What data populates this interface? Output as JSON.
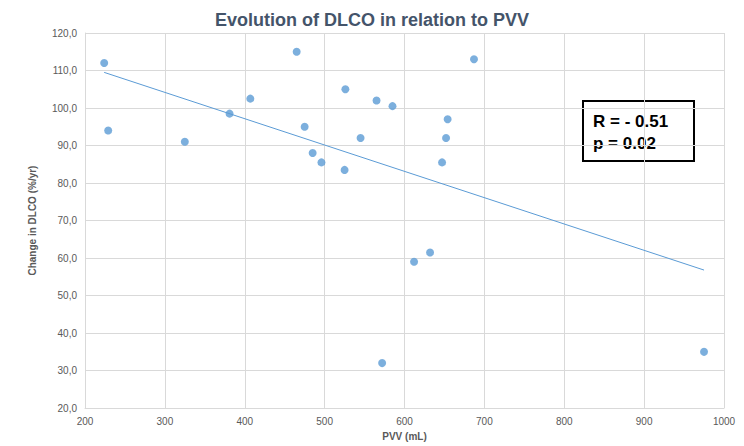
{
  "chart_data": {
    "type": "scatter",
    "title": "Evolution of DLCO in relation to PVV",
    "x_label": "PVV (mL)",
    "y_label": "Change in DLCO (%/yr)",
    "annotations": [
      "R = - 0.51",
      "p = 0.02"
    ],
    "xlim": [
      200,
      1000
    ],
    "xticks": [
      200,
      300,
      400,
      500,
      600,
      700,
      800,
      900,
      1000
    ],
    "ylim": [
      20,
      120
    ],
    "yticks": [
      {
        "value": 20,
        "label": "20,0"
      },
      {
        "value": 30,
        "label": "30,0"
      },
      {
        "value": 40,
        "label": "40,0"
      },
      {
        "value": 50,
        "label": "50,0"
      },
      {
        "value": 60,
        "label": "60,0"
      },
      {
        "value": 70,
        "label": "70,0"
      },
      {
        "value": 80,
        "label": "80,0"
      },
      {
        "value": 90,
        "label": "90,0"
      },
      {
        "value": 100,
        "label": "100,0"
      },
      {
        "value": 110,
        "label": "110,0"
      },
      {
        "value": 120,
        "label": "120,0"
      }
    ],
    "grid": true,
    "series": [
      {
        "type": "scatter",
        "color": "#5b9bd5",
        "marker": "circle",
        "x": [
          224,
          229,
          325,
          381,
          407,
          465,
          475,
          485,
          496,
          525,
          526,
          545,
          565,
          572,
          585,
          612,
          632,
          647,
          652,
          654,
          687,
          975
        ],
        "values": [
          112,
          94,
          91,
          98.5,
          102.5,
          115,
          95,
          88,
          85.5,
          83.5,
          105,
          92,
          102,
          32,
          100.5,
          59,
          61.5,
          85.5,
          92,
          97,
          113,
          35
        ]
      },
      {
        "type": "line",
        "color": "#5b9bd5",
        "line_style": "solid",
        "x": [
          224,
          975
        ],
        "values": [
          109.5,
          56.8
        ]
      }
    ]
  }
}
